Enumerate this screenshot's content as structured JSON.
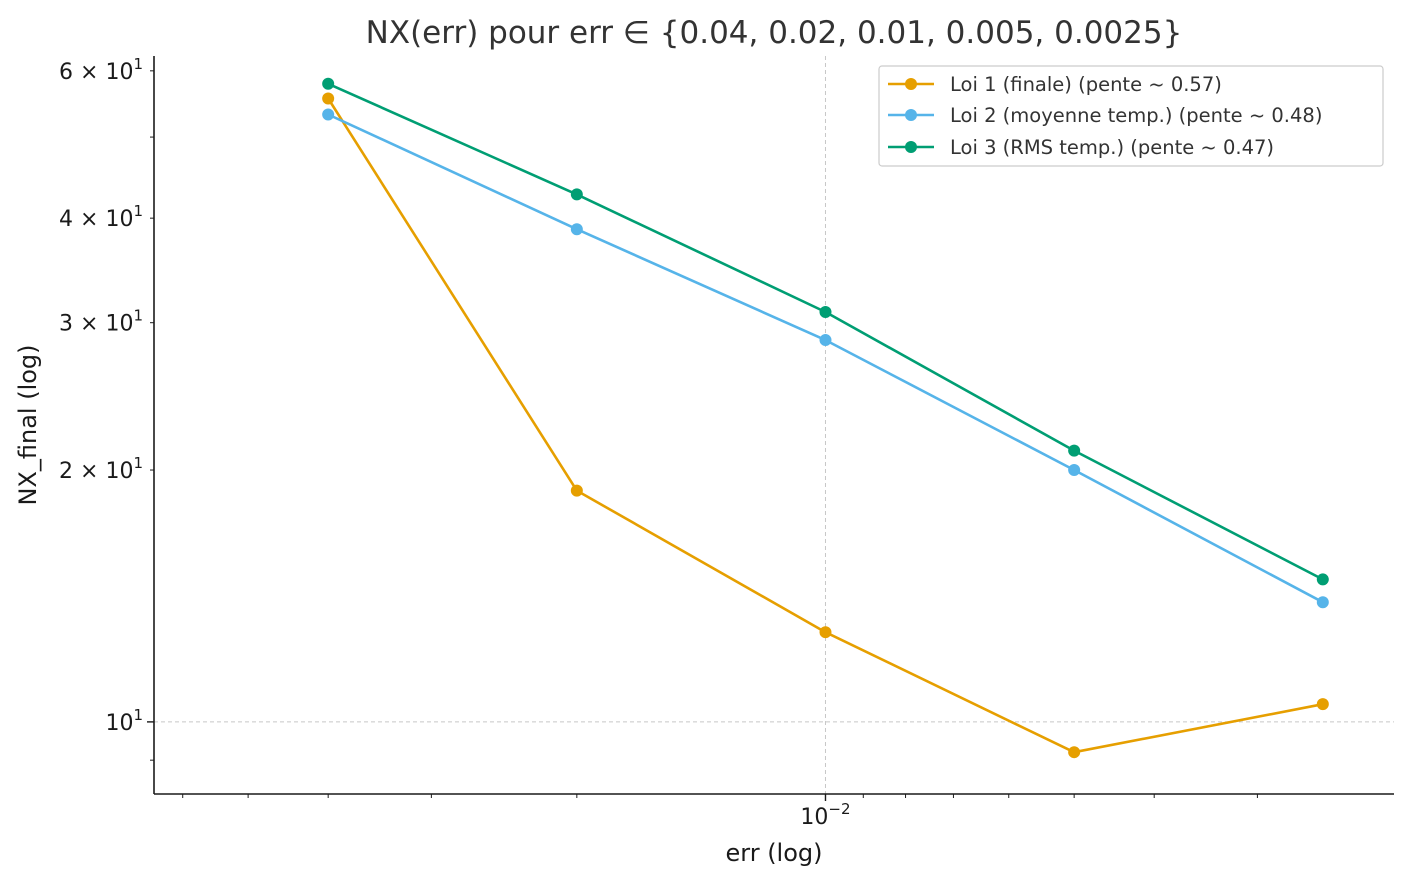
{
  "chart_data": {
    "type": "line",
    "title": "NX(err) pour err ∈ {0.04, 0.02, 0.01, 0.005, 0.0025}",
    "xlabel": "err (log)",
    "ylabel": "NX_final (log)",
    "x_scale": "log",
    "y_scale": "log",
    "x_axis_direction": "reversed",
    "x": [
      0.04,
      0.02,
      0.01,
      0.005,
      0.0025
    ],
    "xlim": [
      0.065,
      0.00205
    ],
    "ylim": [
      8.2,
      62.5
    ],
    "x_ticks": [
      {
        "value": 0.01,
        "label": "10",
        "exp": "−2"
      }
    ],
    "y_ticks": [
      {
        "value": 60,
        "label": "6 × 10",
        "exp": "1"
      },
      {
        "value": 40,
        "label": "4 × 10",
        "exp": "1"
      },
      {
        "value": 30,
        "label": "3 × 10",
        "exp": "1"
      },
      {
        "value": 20,
        "label": "2 × 10",
        "exp": "1"
      },
      {
        "value": 10,
        "label": "10",
        "exp": "1"
      }
    ],
    "grid": "major ticks only, dashed",
    "legend_position": "top-right",
    "series": [
      {
        "name": "Loi 1 (finale) (pente ~ 0.57)",
        "color": "#E69F00",
        "values": [
          55.6,
          18.9,
          12.8,
          9.2,
          10.5
        ]
      },
      {
        "name": "Loi 2 (moyenne temp.) (pente ~ 0.48)",
        "color": "#56B4E9",
        "values": [
          53.2,
          38.8,
          28.6,
          20.0,
          13.9
        ]
      },
      {
        "name": "Loi 3 (RMS temp.) (pente ~ 0.47)",
        "color": "#009E73",
        "values": [
          57.9,
          42.7,
          30.9,
          21.1,
          14.8
        ]
      }
    ]
  }
}
